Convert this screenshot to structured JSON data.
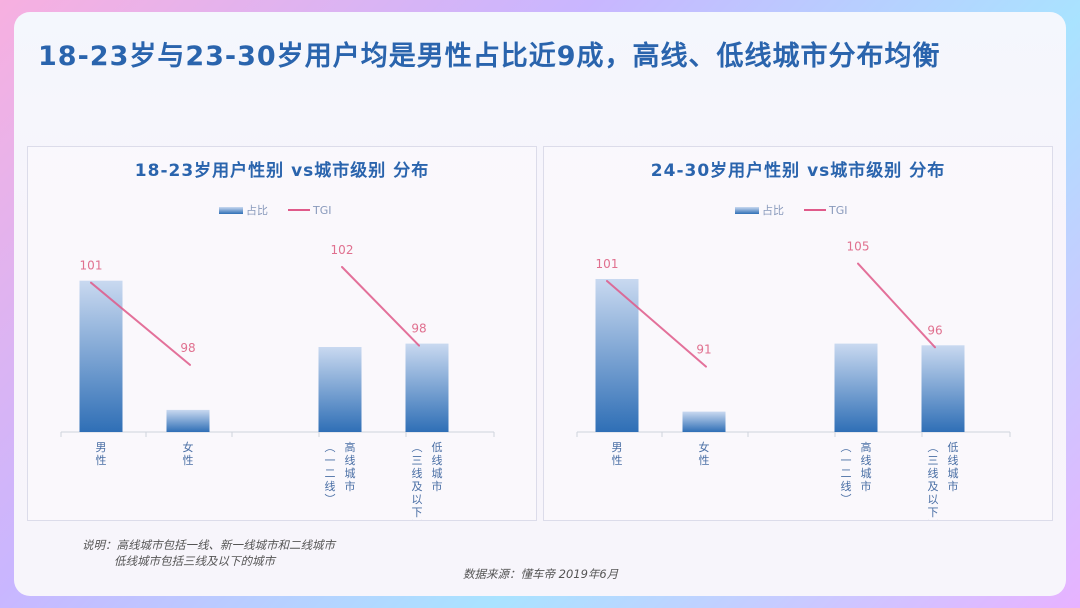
{
  "title": "18-23岁与23-30岁用户均是男性占比近9成，高线、低线城市分布均衡",
  "note": {
    "line1": "说明：高线城市包括一线、新一线城市和二线城市",
    "line2": "低线城市包括三线及以下的城市"
  },
  "source": "数据来源：懂车帝  2019年6月",
  "colors": {
    "title": "#2a64ad",
    "bar_top": "#c9d9f0",
    "bar_bottom": "#2f6fb6",
    "tgi_line": "#e05a8a",
    "tgi_label": "#e0708f"
  },
  "chart_data": [
    {
      "type": "bar",
      "title": "18-23岁用户性别 vs城市级别 分布",
      "legend": [
        "占比",
        "TGI"
      ],
      "categories": [
        "男性",
        "女性",
        "高线城市（一二线）",
        "低线城市（三线及以下）"
      ],
      "category_labels": [
        [
          "男",
          "性"
        ],
        [
          "女",
          "性"
        ],
        [
          "高线城市",
          "（一二线）"
        ],
        [
          "低线城市",
          "（三线及以下）"
        ]
      ],
      "series": [
        {
          "name": "占比",
          "type": "bar",
          "values": [
            0.89,
            0.13,
            0.5,
            0.52
          ],
          "note": "relative bar heights, no axis printed"
        },
        {
          "name": "TGI",
          "type": "line",
          "segments": [
            [
              0,
              1
            ],
            [
              2,
              3
            ]
          ],
          "values": [
            101,
            98,
            102,
            98
          ]
        }
      ]
    },
    {
      "type": "bar",
      "title": "24-30岁用户性别 vs城市级别 分布",
      "legend": [
        "占比",
        "TGI"
      ],
      "categories": [
        "男性",
        "女性",
        "高线城市（一二线）",
        "低线城市（三线及以下）"
      ],
      "category_labels": [
        [
          "男",
          "性"
        ],
        [
          "女",
          "性"
        ],
        [
          "高线城市",
          "（一二线）"
        ],
        [
          "低线城市",
          "（三线及以下）"
        ]
      ],
      "series": [
        {
          "name": "占比",
          "type": "bar",
          "values": [
            0.9,
            0.12,
            0.52,
            0.51
          ],
          "note": "relative bar heights, no axis printed"
        },
        {
          "name": "TGI",
          "type": "line",
          "segments": [
            [
              0,
              1
            ],
            [
              2,
              3
            ]
          ],
          "values": [
            101,
            91,
            105,
            96
          ]
        }
      ]
    }
  ]
}
